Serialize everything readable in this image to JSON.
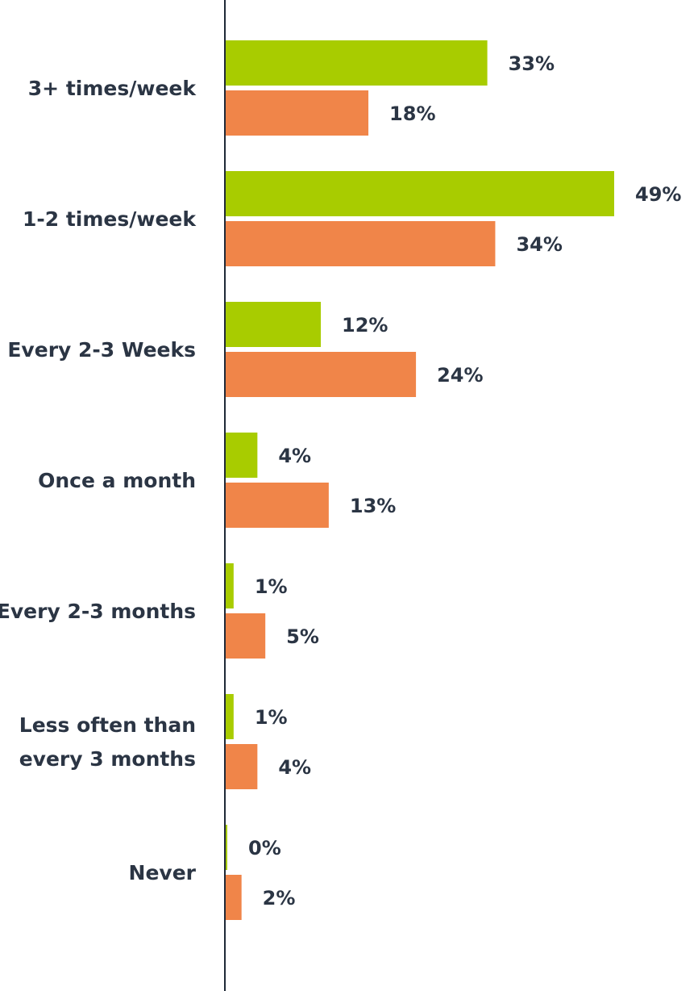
{
  "chart_data": {
    "type": "bar",
    "orientation": "horizontal",
    "categories": [
      [
        "3+ times/week"
      ],
      [
        "1-2 times/week"
      ],
      [
        "Every 2-3 Weeks"
      ],
      [
        "Once a month"
      ],
      [
        "Every 2-3 months"
      ],
      [
        "Less often than",
        "every 3 months"
      ],
      [
        "Never"
      ]
    ],
    "series": [
      {
        "color": "#a8cc00",
        "values": [
          33,
          49,
          12,
          4,
          1,
          1,
          0
        ],
        "labels": [
          "33%",
          "49%",
          "12%",
          "4%",
          "1%",
          "1%",
          "0%"
        ]
      },
      {
        "color": "#f08549",
        "values": [
          18,
          34,
          24,
          13,
          5,
          4,
          2
        ],
        "labels": [
          "18%",
          "34%",
          "24%",
          "13%",
          "5%",
          "4%",
          "2%"
        ]
      }
    ],
    "xlim": [
      0,
      49
    ],
    "grid": false,
    "legend": "none",
    "axis_color": "#1f2937"
  }
}
